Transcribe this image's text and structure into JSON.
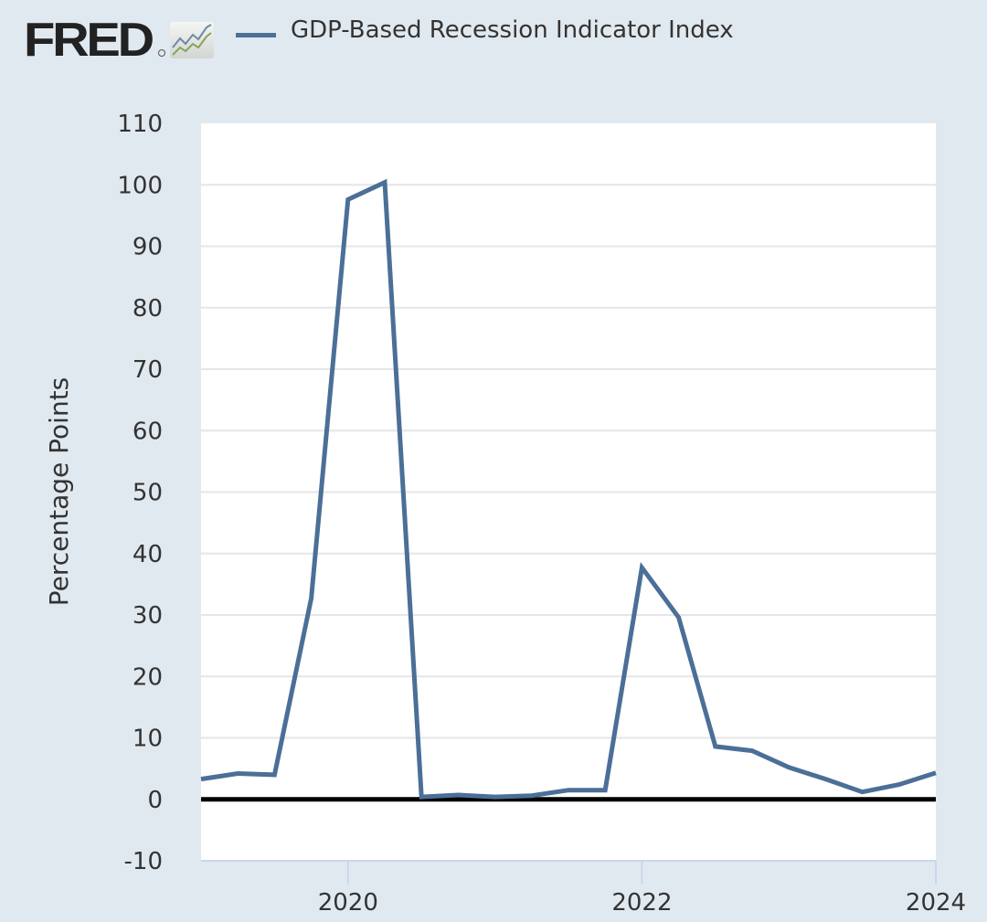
{
  "logo": {
    "text": "FRED",
    "icon": "line-chart-icon"
  },
  "colors": {
    "background": "#e1e9f0",
    "plot_background": "#ffffff",
    "series": "#4b6f97",
    "zero_line": "#000000",
    "grid": "#e6e6e6",
    "text": "#333333"
  },
  "chart_data": {
    "type": "line",
    "title": "",
    "legend_placement": "top",
    "series": [
      {
        "name": "GDP-Based Recession Indicator Index",
        "x": [
          2019.0,
          2019.25,
          2019.5,
          2019.75,
          2020.0,
          2020.25,
          2020.5,
          2020.75,
          2021.0,
          2021.25,
          2021.5,
          2021.75,
          2022.0,
          2022.25,
          2022.5,
          2022.75,
          2023.0,
          2023.25,
          2023.5,
          2023.75,
          2024.0
        ],
        "values": [
          3.3,
          4.2,
          4.0,
          32.7,
          97.6,
          100.4,
          0.4,
          0.7,
          0.4,
          0.6,
          1.5,
          1.5,
          37.7,
          29.6,
          8.6,
          7.9,
          5.2,
          3.3,
          1.2,
          2.4,
          4.3
        ]
      }
    ],
    "xlabel": "",
    "ylabel": "Percentage Points",
    "xlim": [
      2019.0,
      2024.0
    ],
    "ylim": [
      -10,
      110
    ],
    "x_ticks": [
      2020,
      2022,
      2024
    ],
    "x_tick_labels": [
      "2020",
      "2022",
      "2024"
    ],
    "y_ticks": [
      -10,
      0,
      10,
      20,
      30,
      40,
      50,
      60,
      70,
      80,
      90,
      100,
      110
    ],
    "y_tick_labels": [
      "-10",
      "0",
      "10",
      "20",
      "30",
      "40",
      "50",
      "60",
      "70",
      "80",
      "90",
      "100",
      "110"
    ],
    "reference_line": 0,
    "grid": true
  }
}
